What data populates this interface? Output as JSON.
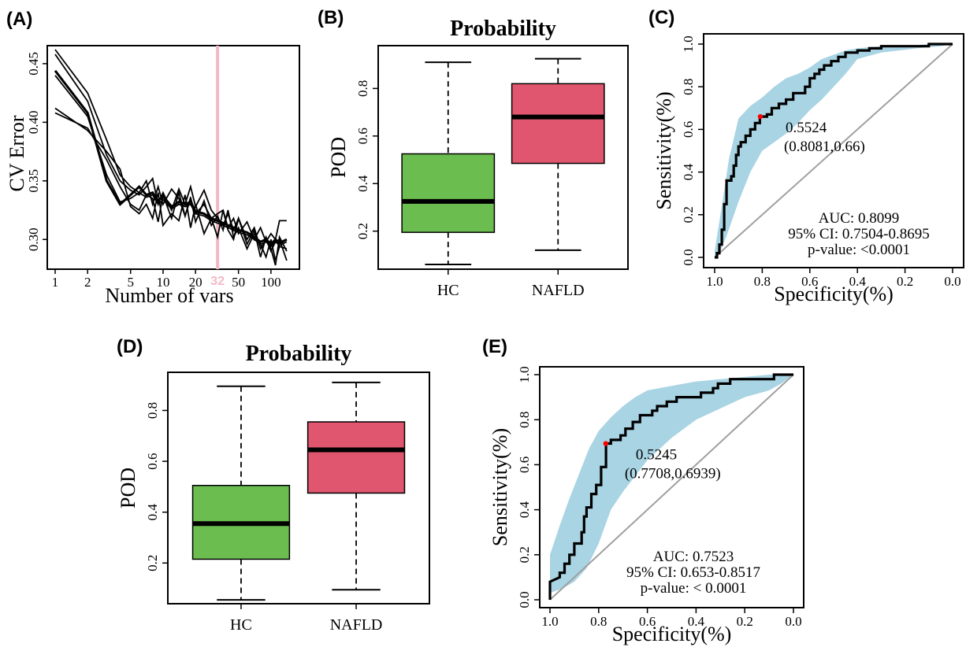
{
  "labels": {
    "A": "(A)",
    "B": "(B)",
    "C": "(C)",
    "D": "(D)",
    "E": "(E)"
  },
  "colors": {
    "hc": "#6cbd4f",
    "nafld": "#e0566e",
    "ci_band": "#a9d4e4",
    "marker": "#ff0000",
    "cutoff_line": "#f2b9c3",
    "diagonal": "#a0a0a0"
  },
  "chart_data": [
    {
      "id": "A",
      "type": "line",
      "title": "",
      "xlabel": "Number of vars",
      "ylabel": "CV Error",
      "xscale": "log",
      "xlim": [
        1,
        150
      ],
      "ylim": [
        0.28,
        0.46
      ],
      "x_ticks": [
        "1",
        "2",
        "5",
        "10",
        "20",
        "50",
        "100"
      ],
      "x_tick_values": [
        1,
        2,
        5,
        10,
        20,
        50,
        100
      ],
      "y_ticks": [
        "0.30",
        "0.35",
        "0.40",
        "0.45"
      ],
      "y_tick_values": [
        0.3,
        0.35,
        0.4,
        0.45
      ],
      "cutoff_label": "32",
      "cutoff_x": 32,
      "x": [
        1,
        2,
        3,
        4,
        5,
        6,
        7,
        8,
        9,
        10,
        12,
        14,
        16,
        18,
        20,
        24,
        28,
        32,
        36,
        40,
        45,
        50,
        60,
        70,
        80,
        90,
        100,
        110,
        120,
        140
      ],
      "series": [
        {
          "values": [
            0.462,
            0.425,
            0.385,
            0.355,
            0.345,
            0.34,
            0.35,
            0.33,
            0.345,
            0.33,
            0.343,
            0.335,
            0.32,
            0.335,
            0.322,
            0.33,
            0.318,
            0.322,
            0.325,
            0.31,
            0.318,
            0.305,
            0.315,
            0.3,
            0.31,
            0.298,
            0.305,
            0.3,
            0.316,
            0.316
          ]
        },
        {
          "values": [
            0.458,
            0.418,
            0.372,
            0.35,
            0.342,
            0.338,
            0.345,
            0.352,
            0.33,
            0.34,
            0.325,
            0.343,
            0.33,
            0.345,
            0.328,
            0.342,
            0.325,
            0.318,
            0.312,
            0.322,
            0.308,
            0.318,
            0.3,
            0.31,
            0.292,
            0.3,
            0.29,
            0.298,
            0.3,
            0.282
          ]
        },
        {
          "values": [
            0.444,
            0.408,
            0.35,
            0.33,
            0.338,
            0.345,
            0.338,
            0.34,
            0.333,
            0.337,
            0.328,
            0.332,
            0.33,
            0.332,
            0.324,
            0.322,
            0.318,
            0.316,
            0.314,
            0.312,
            0.31,
            0.308,
            0.306,
            0.302,
            0.298,
            0.3,
            0.296,
            0.3,
            0.297,
            0.3
          ]
        },
        {
          "values": [
            0.44,
            0.405,
            0.355,
            0.332,
            0.335,
            0.34,
            0.336,
            0.338,
            0.33,
            0.334,
            0.326,
            0.33,
            0.328,
            0.33,
            0.322,
            0.32,
            0.316,
            0.314,
            0.312,
            0.31,
            0.308,
            0.306,
            0.304,
            0.3,
            0.296,
            0.298,
            0.294,
            0.298,
            0.295,
            0.298
          ]
        },
        {
          "values": [
            0.412,
            0.393,
            0.375,
            0.36,
            0.328,
            0.322,
            0.33,
            0.318,
            0.34,
            0.312,
            0.322,
            0.316,
            0.338,
            0.31,
            0.33,
            0.305,
            0.318,
            0.302,
            0.325,
            0.308,
            0.3,
            0.318,
            0.296,
            0.308,
            0.285,
            0.302,
            0.292,
            0.278,
            0.302,
            0.29
          ]
        },
        {
          "values": [
            0.408,
            0.395,
            0.368,
            0.345,
            0.33,
            0.325,
            0.338,
            0.335,
            0.315,
            0.338,
            0.318,
            0.34,
            0.32,
            0.336,
            0.315,
            0.333,
            0.312,
            0.32,
            0.308,
            0.325,
            0.302,
            0.31,
            0.292,
            0.305,
            0.296,
            0.285,
            0.3,
            0.282,
            0.294,
            0.292
          ]
        }
      ]
    },
    {
      "id": "B",
      "type": "box",
      "title": "Probability",
      "ylabel": "POD",
      "ylim": [
        0.04,
        0.98
      ],
      "y_ticks": [
        "0.2",
        "0.4",
        "0.6",
        "0.8"
      ],
      "y_tick_values": [
        0.2,
        0.4,
        0.6,
        0.8
      ],
      "categories": [
        "HC",
        "NAFLD"
      ],
      "boxes": [
        {
          "min": 0.06,
          "q1": 0.195,
          "median": 0.325,
          "q3": 0.525,
          "max": 0.91
        },
        {
          "min": 0.12,
          "q1": 0.485,
          "median": 0.68,
          "q3": 0.82,
          "max": 0.925
        }
      ]
    },
    {
      "id": "C",
      "type": "line",
      "subtype": "roc",
      "xlabel": "Specificity(%)",
      "ylabel": "Sensitivity(%)",
      "x_reversed": true,
      "xlim": [
        1.0,
        0.0
      ],
      "ylim": [
        0.0,
        1.0
      ],
      "x_ticks": [
        "1.0",
        "0.8",
        "0.6",
        "0.4",
        "0.2",
        "0.0"
      ],
      "x_tick_values": [
        1.0,
        0.8,
        0.6,
        0.4,
        0.2,
        0.0
      ],
      "y_ticks": [
        "0.0",
        "0.2",
        "0.4",
        "0.6",
        "0.8",
        "1.0"
      ],
      "y_tick_values": [
        0.0,
        0.2,
        0.4,
        0.6,
        0.8,
        1.0
      ],
      "point_label": "0.5524",
      "point_coords": "(0.8081,0.66)",
      "point": {
        "specificity": 0.8081,
        "sensitivity": 0.66
      },
      "auc_text": "AUC: 0.8099",
      "ci_text": "95% CI: 0.7504-0.8695",
      "p_text": "p-value:  <0.0001",
      "curve": [
        [
          1.0,
          0.0
        ],
        [
          0.99,
          0.0
        ],
        [
          0.99,
          0.02
        ],
        [
          0.98,
          0.02
        ],
        [
          0.98,
          0.06
        ],
        [
          0.97,
          0.06
        ],
        [
          0.97,
          0.13
        ],
        [
          0.96,
          0.13
        ],
        [
          0.96,
          0.25
        ],
        [
          0.95,
          0.25
        ],
        [
          0.95,
          0.36
        ],
        [
          0.93,
          0.36
        ],
        [
          0.93,
          0.38
        ],
        [
          0.92,
          0.38
        ],
        [
          0.92,
          0.43
        ],
        [
          0.91,
          0.43
        ],
        [
          0.91,
          0.48
        ],
        [
          0.9,
          0.48
        ],
        [
          0.9,
          0.52
        ],
        [
          0.89,
          0.52
        ],
        [
          0.89,
          0.54
        ],
        [
          0.87,
          0.54
        ],
        [
          0.87,
          0.57
        ],
        [
          0.85,
          0.57
        ],
        [
          0.85,
          0.6
        ],
        [
          0.83,
          0.6
        ],
        [
          0.83,
          0.63
        ],
        [
          0.81,
          0.63
        ],
        [
          0.81,
          0.66
        ],
        [
          0.78,
          0.66
        ],
        [
          0.78,
          0.67
        ],
        [
          0.76,
          0.67
        ],
        [
          0.76,
          0.7
        ],
        [
          0.73,
          0.7
        ],
        [
          0.73,
          0.72
        ],
        [
          0.7,
          0.72
        ],
        [
          0.7,
          0.74
        ],
        [
          0.67,
          0.74
        ],
        [
          0.67,
          0.77
        ],
        [
          0.62,
          0.77
        ],
        [
          0.62,
          0.8
        ],
        [
          0.6,
          0.8
        ],
        [
          0.6,
          0.84
        ],
        [
          0.58,
          0.84
        ],
        [
          0.58,
          0.86
        ],
        [
          0.56,
          0.86
        ],
        [
          0.56,
          0.88
        ],
        [
          0.54,
          0.88
        ],
        [
          0.54,
          0.9
        ],
        [
          0.51,
          0.9
        ],
        [
          0.51,
          0.92
        ],
        [
          0.48,
          0.92
        ],
        [
          0.48,
          0.94
        ],
        [
          0.45,
          0.94
        ],
        [
          0.45,
          0.96
        ],
        [
          0.4,
          0.96
        ],
        [
          0.4,
          0.97
        ],
        [
          0.35,
          0.97
        ],
        [
          0.35,
          0.98
        ],
        [
          0.3,
          0.98
        ],
        [
          0.3,
          0.99
        ],
        [
          0.1,
          0.99
        ],
        [
          0.1,
          1.0
        ],
        [
          0.0,
          1.0
        ]
      ],
      "band_upper": [
        [
          1.0,
          0.03
        ],
        [
          0.97,
          0.24
        ],
        [
          0.94,
          0.46
        ],
        [
          0.9,
          0.65
        ],
        [
          0.85,
          0.71
        ],
        [
          0.8,
          0.75
        ],
        [
          0.75,
          0.8
        ],
        [
          0.7,
          0.84
        ],
        [
          0.65,
          0.86
        ],
        [
          0.6,
          0.89
        ],
        [
          0.55,
          0.93
        ],
        [
          0.5,
          0.95
        ],
        [
          0.45,
          0.97
        ],
        [
          0.4,
          0.98
        ],
        [
          0.3,
          0.99
        ],
        [
          0.2,
          0.99
        ],
        [
          0.1,
          1.0
        ],
        [
          0.0,
          1.0
        ]
      ],
      "band_lower": [
        [
          0.0,
          1.0
        ],
        [
          0.05,
          0.99
        ],
        [
          0.15,
          0.98
        ],
        [
          0.3,
          0.96
        ],
        [
          0.4,
          0.93
        ],
        [
          0.45,
          0.86
        ],
        [
          0.5,
          0.8
        ],
        [
          0.55,
          0.74
        ],
        [
          0.6,
          0.69
        ],
        [
          0.65,
          0.63
        ],
        [
          0.7,
          0.58
        ],
        [
          0.75,
          0.54
        ],
        [
          0.8,
          0.5
        ],
        [
          0.85,
          0.4
        ],
        [
          0.9,
          0.26
        ],
        [
          0.95,
          0.1
        ],
        [
          0.98,
          0.02
        ],
        [
          1.0,
          0.0
        ]
      ]
    },
    {
      "id": "D",
      "type": "box",
      "title": "Probability",
      "ylabel": "POD",
      "ylim": [
        0.04,
        0.95
      ],
      "y_ticks": [
        "0.2",
        "0.4",
        "0.6",
        "0.8"
      ],
      "y_tick_values": [
        0.2,
        0.4,
        0.6,
        0.8
      ],
      "categories": [
        "HC",
        "NAFLD"
      ],
      "boxes": [
        {
          "min": 0.055,
          "q1": 0.215,
          "median": 0.355,
          "q3": 0.505,
          "max": 0.895
        },
        {
          "min": 0.095,
          "q1": 0.475,
          "median": 0.645,
          "q3": 0.755,
          "max": 0.91
        }
      ]
    },
    {
      "id": "E",
      "type": "line",
      "subtype": "roc",
      "xlabel": "Specificity(%)",
      "ylabel": "Sensitivity(%)",
      "x_reversed": true,
      "xlim": [
        1.0,
        0.0
      ],
      "ylim": [
        0.0,
        1.0
      ],
      "x_ticks": [
        "1.0",
        "0.8",
        "0.6",
        "0.4",
        "0.2",
        "0.0"
      ],
      "x_tick_values": [
        1.0,
        0.8,
        0.6,
        0.4,
        0.2,
        0.0
      ],
      "y_ticks": [
        "0.0",
        "0.2",
        "0.4",
        "0.6",
        "0.8",
        "1.0"
      ],
      "y_tick_values": [
        0.0,
        0.2,
        0.4,
        0.6,
        0.8,
        1.0
      ],
      "point_label": "0.5245",
      "point_coords": "(0.7708,0.6939)",
      "point": {
        "specificity": 0.7708,
        "sensitivity": 0.6939
      },
      "auc_text": "AUC: 0.7523",
      "ci_text": "95% CI: 0.653-0.8517",
      "p_text": "p-value:  < 0.0001",
      "curve": [
        [
          1.0,
          0.0
        ],
        [
          1.0,
          0.08
        ],
        [
          0.96,
          0.1
        ],
        [
          0.96,
          0.12
        ],
        [
          0.94,
          0.12
        ],
        [
          0.94,
          0.16
        ],
        [
          0.92,
          0.16
        ],
        [
          0.92,
          0.2
        ],
        [
          0.9,
          0.2
        ],
        [
          0.9,
          0.25
        ],
        [
          0.87,
          0.25
        ],
        [
          0.87,
          0.3
        ],
        [
          0.86,
          0.3
        ],
        [
          0.86,
          0.37
        ],
        [
          0.85,
          0.37
        ],
        [
          0.85,
          0.41
        ],
        [
          0.83,
          0.41
        ],
        [
          0.83,
          0.47
        ],
        [
          0.81,
          0.47
        ],
        [
          0.81,
          0.51
        ],
        [
          0.79,
          0.51
        ],
        [
          0.79,
          0.59
        ],
        [
          0.77,
          0.59
        ],
        [
          0.77,
          0.6939
        ],
        [
          0.75,
          0.6939
        ],
        [
          0.75,
          0.71
        ],
        [
          0.71,
          0.71
        ],
        [
          0.71,
          0.73
        ],
        [
          0.69,
          0.73
        ],
        [
          0.69,
          0.76
        ],
        [
          0.66,
          0.76
        ],
        [
          0.66,
          0.79
        ],
        [
          0.63,
          0.79
        ],
        [
          0.63,
          0.82
        ],
        [
          0.58,
          0.82
        ],
        [
          0.58,
          0.84
        ],
        [
          0.56,
          0.84
        ],
        [
          0.56,
          0.86
        ],
        [
          0.52,
          0.86
        ],
        [
          0.52,
          0.88
        ],
        [
          0.48,
          0.88
        ],
        [
          0.48,
          0.9
        ],
        [
          0.38,
          0.9
        ],
        [
          0.38,
          0.92
        ],
        [
          0.33,
          0.92
        ],
        [
          0.33,
          0.94
        ],
        [
          0.31,
          0.94
        ],
        [
          0.31,
          0.96
        ],
        [
          0.26,
          0.96
        ],
        [
          0.26,
          0.98
        ],
        [
          0.08,
          0.98
        ],
        [
          0.08,
          1.0
        ],
        [
          0.0,
          1.0
        ]
      ],
      "band_upper": [
        [
          1.0,
          0.2
        ],
        [
          0.96,
          0.33
        ],
        [
          0.92,
          0.45
        ],
        [
          0.88,
          0.56
        ],
        [
          0.84,
          0.67
        ],
        [
          0.8,
          0.75
        ],
        [
          0.75,
          0.81
        ],
        [
          0.7,
          0.86
        ],
        [
          0.65,
          0.9
        ],
        [
          0.6,
          0.93
        ],
        [
          0.5,
          0.95
        ],
        [
          0.4,
          0.97
        ],
        [
          0.3,
          0.98
        ],
        [
          0.2,
          0.99
        ],
        [
          0.1,
          1.0
        ],
        [
          0.0,
          1.0
        ]
      ],
      "band_lower": [
        [
          0.0,
          1.0
        ],
        [
          0.05,
          0.96
        ],
        [
          0.1,
          0.93
        ],
        [
          0.2,
          0.9
        ],
        [
          0.3,
          0.85
        ],
        [
          0.4,
          0.8
        ],
        [
          0.5,
          0.72
        ],
        [
          0.6,
          0.62
        ],
        [
          0.65,
          0.55
        ],
        [
          0.7,
          0.48
        ],
        [
          0.75,
          0.4
        ],
        [
          0.8,
          0.25
        ],
        [
          0.85,
          0.14
        ],
        [
          0.9,
          0.08
        ],
        [
          0.95,
          0.05
        ],
        [
          1.0,
          0.03
        ]
      ]
    }
  ]
}
